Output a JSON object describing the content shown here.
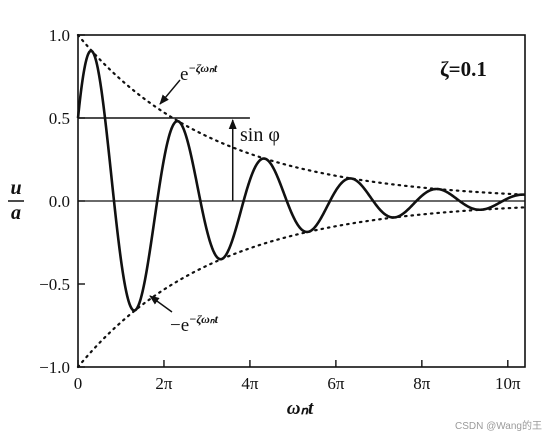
{
  "chart_data": {
    "type": "line",
    "zeta": 0.1,
    "phi_rad": 0.5236,
    "x_unit": "pi",
    "xlim": [
      0,
      10.4
    ],
    "ylim": [
      -1.0,
      1.0
    ],
    "x_ticks": [
      {
        "value": 0,
        "label": "0"
      },
      {
        "value": 2,
        "label": "2π"
      },
      {
        "value": 4,
        "label": "4π"
      },
      {
        "value": 6,
        "label": "6π"
      },
      {
        "value": 8,
        "label": "8π"
      },
      {
        "value": 10,
        "label": "10π"
      }
    ],
    "y_ticks": [
      {
        "value": 1.0,
        "label": "1.0"
      },
      {
        "value": 0.5,
        "label": "0.5"
      },
      {
        "value": 0.0,
        "label": "0.0"
      },
      {
        "value": -0.5,
        "label": "−0.5"
      },
      {
        "value": -1.0,
        "label": "−1.0"
      }
    ],
    "xlabel": "ωₙt",
    "ylabel_num": "u",
    "ylabel_den": "a",
    "series": [
      {
        "role": "response",
        "style": "solid",
        "formula": "e^(−ζωₙt)·sin(ωₙt + φ)"
      },
      {
        "role": "upper-envelope",
        "style": "dotted",
        "formula": "e^(−ζωₙt)"
      },
      {
        "role": "lower-envelope",
        "style": "dotted",
        "formula": "−e^(−ζωₙt)"
      }
    ],
    "grid": false,
    "annotations": {
      "zeta_label": "ζ=0.1",
      "upper_env_base": "e",
      "upper_env_exp": "−ζωₙt",
      "lower_env_base": "−e",
      "lower_env_exp": "−ζωₙt",
      "sinphi_label": "sin φ"
    },
    "sinphi_value": 0.5,
    "sinphi_line_x_end": 4.0
  },
  "watermark": "CSDN @Wang的王"
}
